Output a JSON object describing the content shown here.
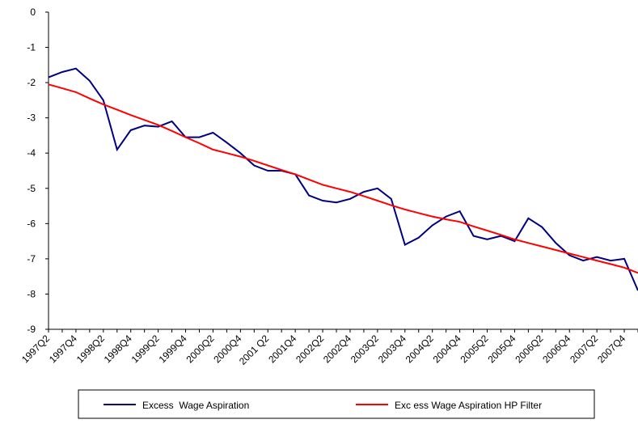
{
  "chart_data": {
    "type": "line",
    "categories": [
      "1997Q2",
      null,
      "1997Q4",
      null,
      "1998Q2",
      null,
      "1998Q4",
      null,
      "1999Q2",
      null,
      "1999Q4",
      null,
      "2000Q2",
      null,
      "2000Q4",
      null,
      "2001 Q2",
      null,
      "2001Q4",
      null,
      "2002Q2",
      null,
      "2002Q4",
      null,
      "2003Q2",
      null,
      "2003Q4",
      null,
      "2004Q2",
      null,
      "2004Q4",
      null,
      "2005Q2",
      null,
      "2005Q4",
      null,
      "2006Q2",
      null,
      "2006Q4",
      null,
      "2007Q2",
      null,
      "2007Q4",
      null
    ],
    "series": [
      {
        "name": "Excess  Wage Aspiration",
        "color": "#000080",
        "values": [
          -1.85,
          -1.7,
          -1.6,
          -1.95,
          -2.5,
          -3.9,
          -3.35,
          -3.22,
          -3.25,
          -3.1,
          -3.55,
          -3.55,
          -3.42,
          -3.7,
          -4.0,
          -4.35,
          -4.5,
          -4.5,
          -4.6,
          -5.2,
          -5.35,
          -5.4,
          -5.3,
          -5.1,
          -5.0,
          -5.3,
          -6.6,
          -6.4,
          -6.05,
          -5.8,
          -5.65,
          -6.35,
          -6.45,
          -6.35,
          -6.5,
          -5.85,
          -6.1,
          -6.55,
          -6.9,
          -7.05,
          -6.95,
          -7.05,
          -7.0,
          -7.9
        ]
      },
      {
        "name": "Exc ess Wage Aspiration HP Filter",
        "color": "#ff0000",
        "values": [
          -2.05,
          -2.16,
          -2.27,
          -2.45,
          -2.62,
          -2.77,
          -2.92,
          -3.06,
          -3.2,
          -3.37,
          -3.55,
          -3.72,
          -3.9,
          -4.0,
          -4.1,
          -4.22,
          -4.35,
          -4.48,
          -4.6,
          -4.75,
          -4.9,
          -5.0,
          -5.1,
          -5.22,
          -5.35,
          -5.48,
          -5.6,
          -5.7,
          -5.8,
          -5.88,
          -5.95,
          -6.08,
          -6.2,
          -6.32,
          -6.45,
          -6.55,
          -6.65,
          -6.75,
          -6.85,
          -6.95,
          -7.05,
          -7.15,
          -7.25,
          -7.4
        ]
      }
    ],
    "ylim": [
      -9,
      0
    ],
    "yticks": [
      -9,
      -8,
      -7,
      -6,
      -5,
      -4,
      -3,
      -2,
      -1,
      0
    ],
    "grid": false,
    "legend": "bottom"
  }
}
